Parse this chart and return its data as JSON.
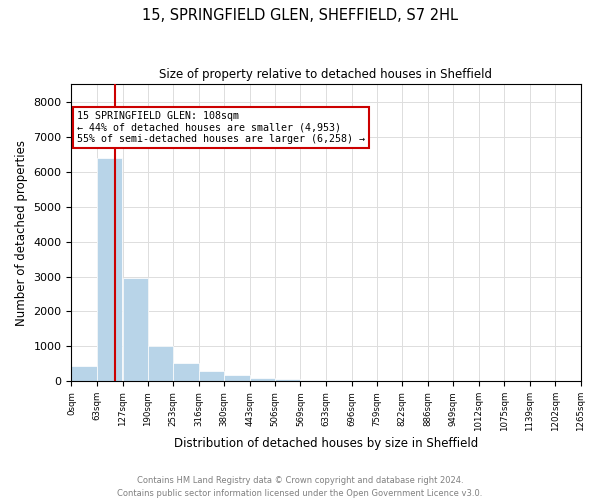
{
  "title1": "15, SPRINGFIELD GLEN, SHEFFIELD, S7 2HL",
  "title2": "Size of property relative to detached houses in Sheffield",
  "xlabel": "Distribution of detached houses by size in Sheffield",
  "ylabel": "Number of detached properties",
  "property_size": 108,
  "annotation_line1": "15 SPRINGFIELD GLEN: 108sqm",
  "annotation_line2": "← 44% of detached houses are smaller (4,953)",
  "annotation_line3": "55% of semi-detached houses are larger (6,258) →",
  "footnote1": "Contains HM Land Registry data © Crown copyright and database right 2024.",
  "footnote2": "Contains public sector information licensed under the Open Government Licence v3.0.",
  "bar_color": "#b8d4e8",
  "bar_edge_color": "#ffffff",
  "annotation_box_color": "#cc0000",
  "vline_color": "#cc0000",
  "bin_width": 63,
  "bin_starts": [
    0,
    63,
    127,
    190,
    253,
    316,
    380,
    443,
    506,
    569,
    633,
    696,
    759,
    822,
    886,
    949,
    1012,
    1075,
    1139,
    1202
  ],
  "xtick_positions": [
    0,
    63,
    127,
    190,
    253,
    316,
    380,
    443,
    506,
    569,
    633,
    696,
    759,
    822,
    886,
    949,
    1012,
    1075,
    1139,
    1202,
    1265
  ],
  "xtick_labels": [
    "0sqm",
    "63sqm",
    "127sqm",
    "190sqm",
    "253sqm",
    "316sqm",
    "380sqm",
    "443sqm",
    "506sqm",
    "569sqm",
    "633sqm",
    "696sqm",
    "759sqm",
    "822sqm",
    "886sqm",
    "949sqm",
    "1012sqm",
    "1075sqm",
    "1139sqm",
    "1202sqm",
    "1265sqm"
  ],
  "counts": [
    450,
    6400,
    2950,
    1000,
    520,
    300,
    180,
    110,
    70,
    50,
    38,
    30,
    22,
    18,
    14,
    10,
    8,
    6,
    5,
    4
  ],
  "ylim": [
    0,
    8500
  ],
  "yticks": [
    0,
    1000,
    2000,
    3000,
    4000,
    5000,
    6000,
    7000,
    8000
  ],
  "background_color": "#ffffff",
  "grid_color": "#dddddd"
}
